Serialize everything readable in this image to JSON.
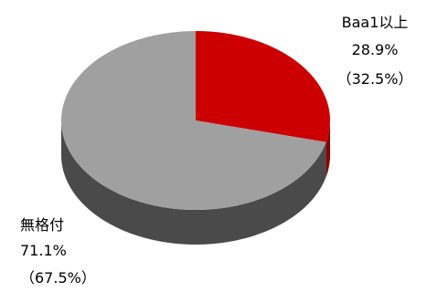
{
  "chart_data": {
    "type": "pie",
    "style": "3d",
    "title": "",
    "start_angle_deg": 90,
    "direction": "clockwise",
    "slices": [
      {
        "name": "Baa1以上",
        "value": 28.9,
        "value_label": "28.9%",
        "prior_label": "（32.5%）",
        "color": "#cc0000",
        "side_color": "#8a0000"
      },
      {
        "name": "無格付",
        "value": 71.1,
        "value_label": "71.1%",
        "prior_label": "（67.5%）",
        "color": "#a0a0a0",
        "side_color": "#4a4a4a"
      }
    ],
    "legend": "none"
  }
}
